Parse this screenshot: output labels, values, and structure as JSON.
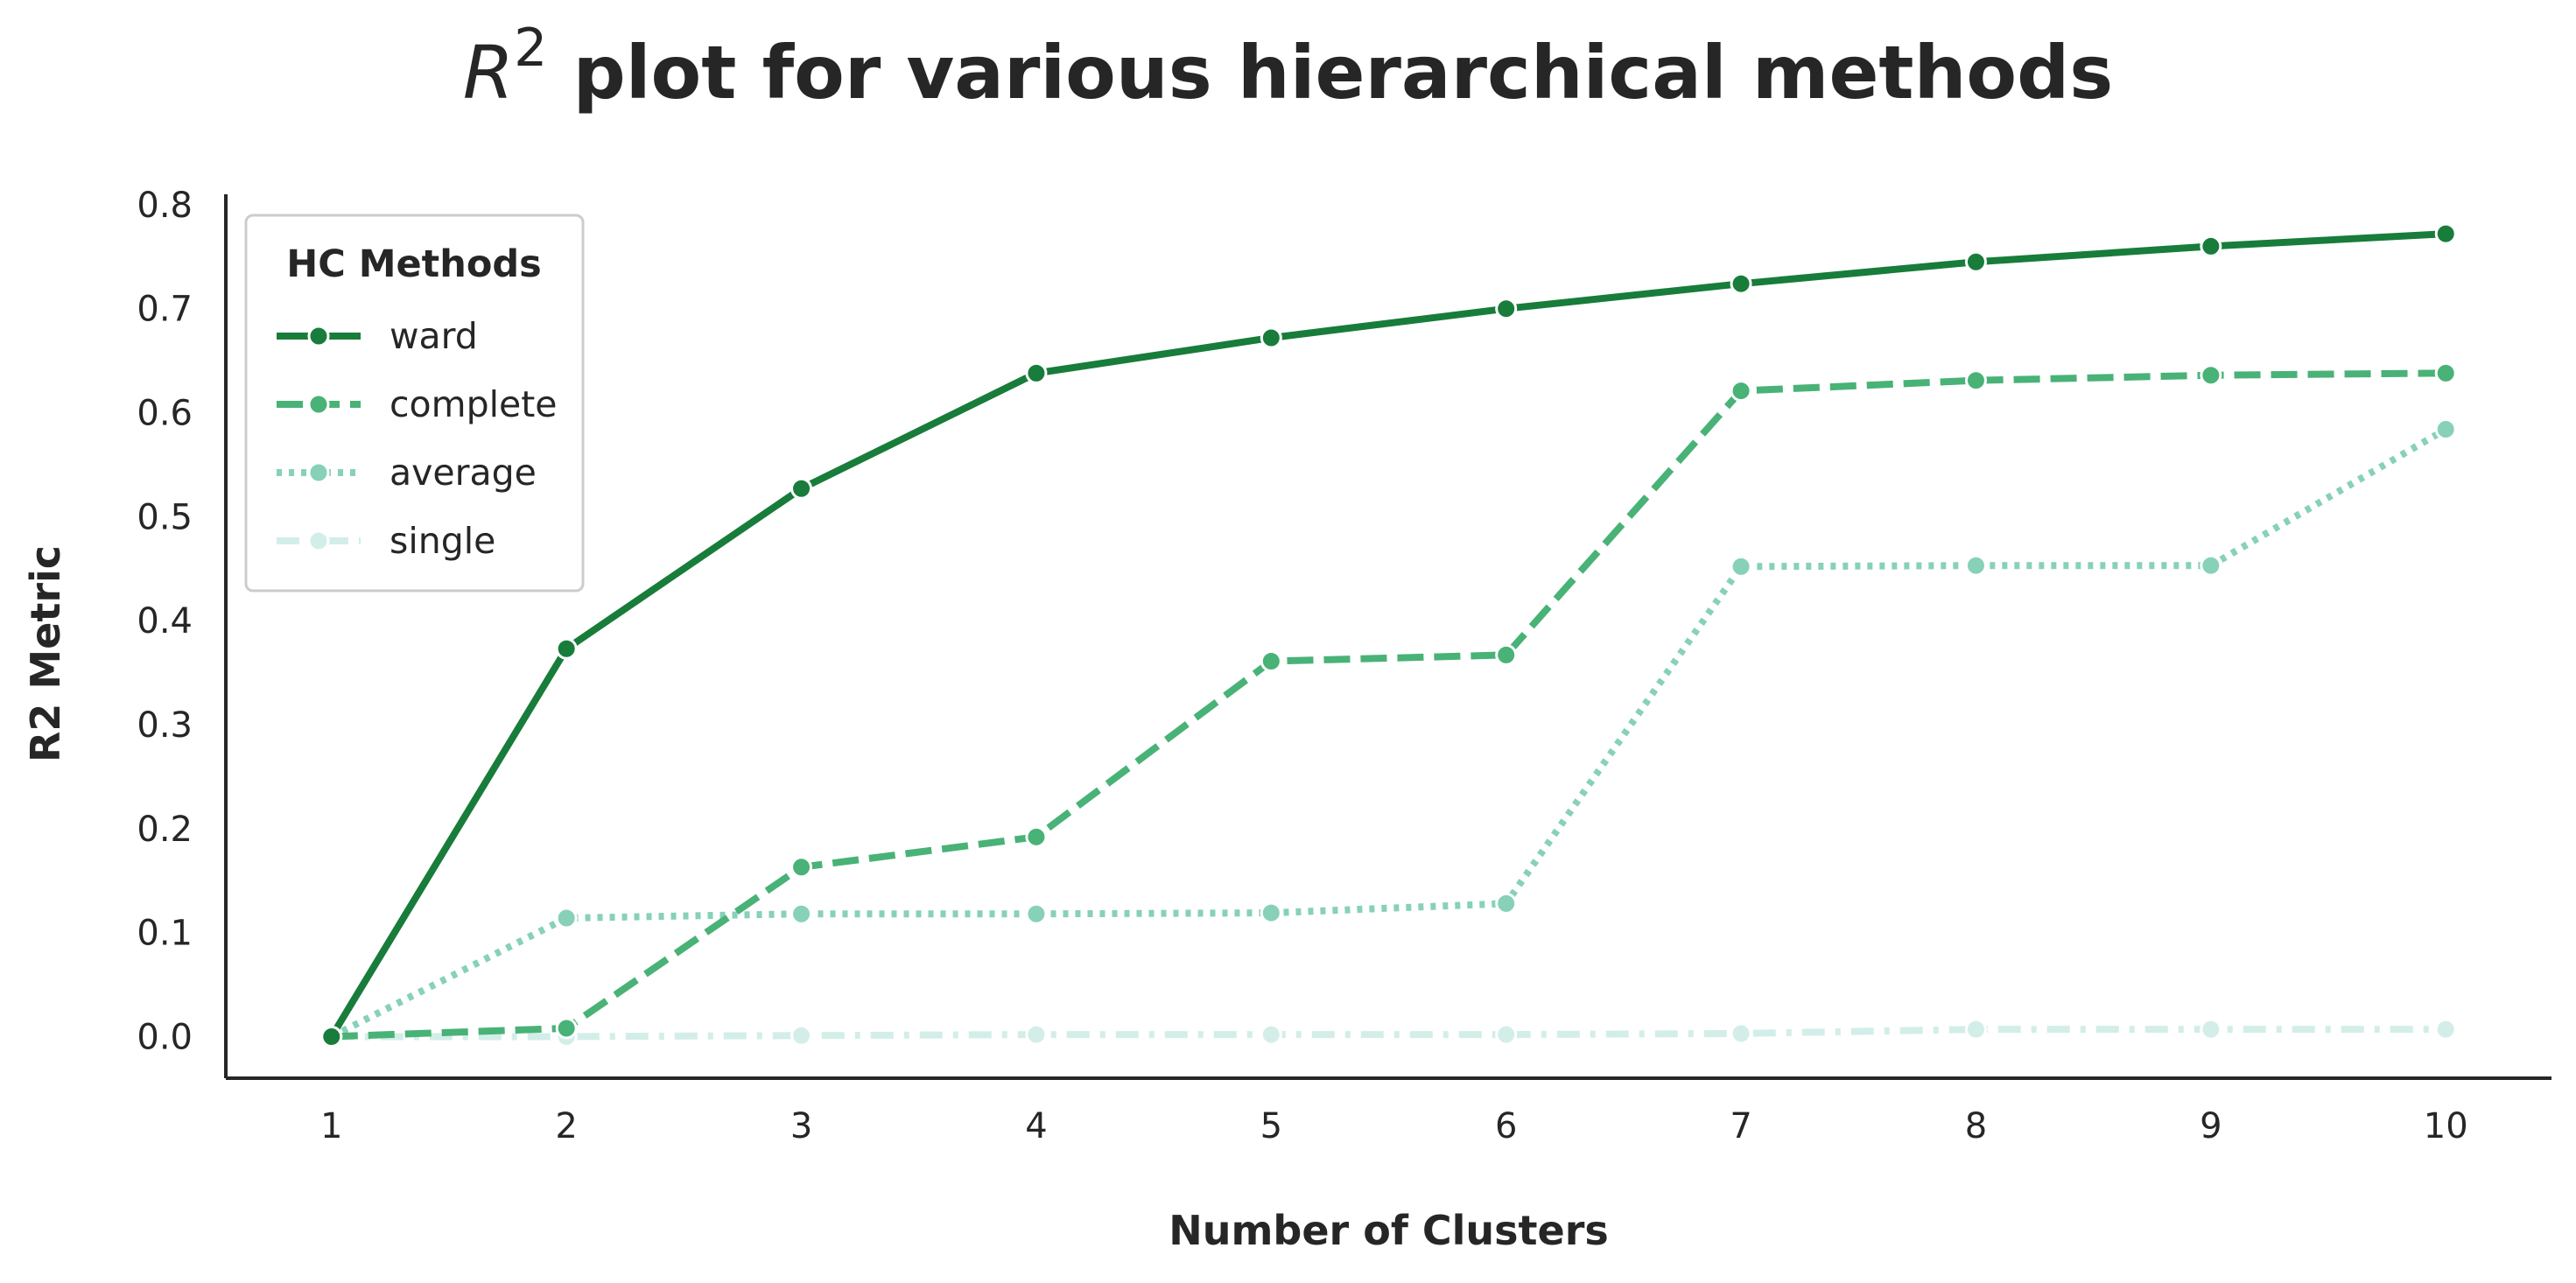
{
  "chart_data": {
    "type": "line",
    "title_math": "R",
    "title_sup": "2",
    "title_rest": " plot for various hierarchical methods",
    "xlabel": "Number of Clusters",
    "ylabel": "R2 Metric",
    "x": [
      1,
      2,
      3,
      4,
      5,
      6,
      7,
      8,
      9,
      10
    ],
    "xticks": [
      "1",
      "2",
      "3",
      "4",
      "5",
      "6",
      "7",
      "8",
      "9",
      "10"
    ],
    "yticks": [
      "0.0",
      "0.1",
      "0.2",
      "0.3",
      "0.4",
      "0.5",
      "0.6",
      "0.7",
      "0.8"
    ],
    "xlim": [
      0.55,
      10.45
    ],
    "ylim": [
      -0.04,
      0.81
    ],
    "grid": false,
    "legend": {
      "title": "HC Methods",
      "placement": "top-left"
    },
    "series": [
      {
        "name": "ward",
        "color": "#187c3b",
        "dash": "solid",
        "values": [
          0.0,
          0.373,
          0.527,
          0.638,
          0.672,
          0.7,
          0.724,
          0.745,
          0.76,
          0.772
        ]
      },
      {
        "name": "complete",
        "color": "#49b277",
        "dash": "dashed",
        "values": [
          0.0,
          0.008,
          0.163,
          0.192,
          0.361,
          0.367,
          0.621,
          0.631,
          0.636,
          0.638
        ]
      },
      {
        "name": "average",
        "color": "#87d1b8",
        "dash": "dotted",
        "values": [
          0.0,
          0.114,
          0.118,
          0.118,
          0.119,
          0.128,
          0.452,
          0.453,
          0.453,
          0.584
        ]
      },
      {
        "name": "single",
        "color": "#d3eee8",
        "dash": "dashdot",
        "values": [
          0.0,
          0.0,
          0.001,
          0.002,
          0.002,
          0.002,
          0.003,
          0.007,
          0.007,
          0.007
        ]
      }
    ]
  }
}
